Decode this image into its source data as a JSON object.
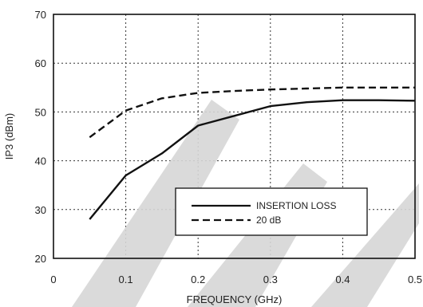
{
  "chart_data": {
    "type": "line",
    "xlabel": "FREQUENCY (GHz)",
    "ylabel": "IP3 (dBm)",
    "xlim": [
      0,
      0.5
    ],
    "ylim": [
      20,
      70
    ],
    "x_ticks": [
      0,
      0.1,
      0.2,
      0.3,
      0.4,
      0.5
    ],
    "x_tick_labels": [
      "0",
      "0.1",
      "0.2",
      "0.3",
      "0.4",
      "0.5"
    ],
    "y_ticks": [
      20,
      30,
      40,
      50,
      60,
      70
    ],
    "y_tick_labels": [
      "20",
      "30",
      "40",
      "50",
      "60",
      "70"
    ],
    "grid": true,
    "grid_style": "dotted",
    "legend_position": "lower-right",
    "series": [
      {
        "name": "INSERTION LOSS",
        "line_style": "solid",
        "color": "#111111",
        "x": [
          0.05,
          0.1,
          0.15,
          0.2,
          0.25,
          0.3,
          0.35,
          0.4,
          0.45,
          0.5
        ],
        "y": [
          28,
          37,
          41.5,
          47.2,
          49.2,
          51.2,
          52,
          52.4,
          52.4,
          52.3
        ]
      },
      {
        "name": "20 dB",
        "line_style": "dashed",
        "color": "#111111",
        "x": [
          0.05,
          0.1,
          0.15,
          0.2,
          0.25,
          0.3,
          0.35,
          0.4,
          0.45,
          0.5
        ],
        "y": [
          44.8,
          50.3,
          52.8,
          53.9,
          54.3,
          54.6,
          54.8,
          55,
          55,
          55
        ]
      }
    ]
  },
  "watermark": {
    "color": "#d6d6d6"
  }
}
